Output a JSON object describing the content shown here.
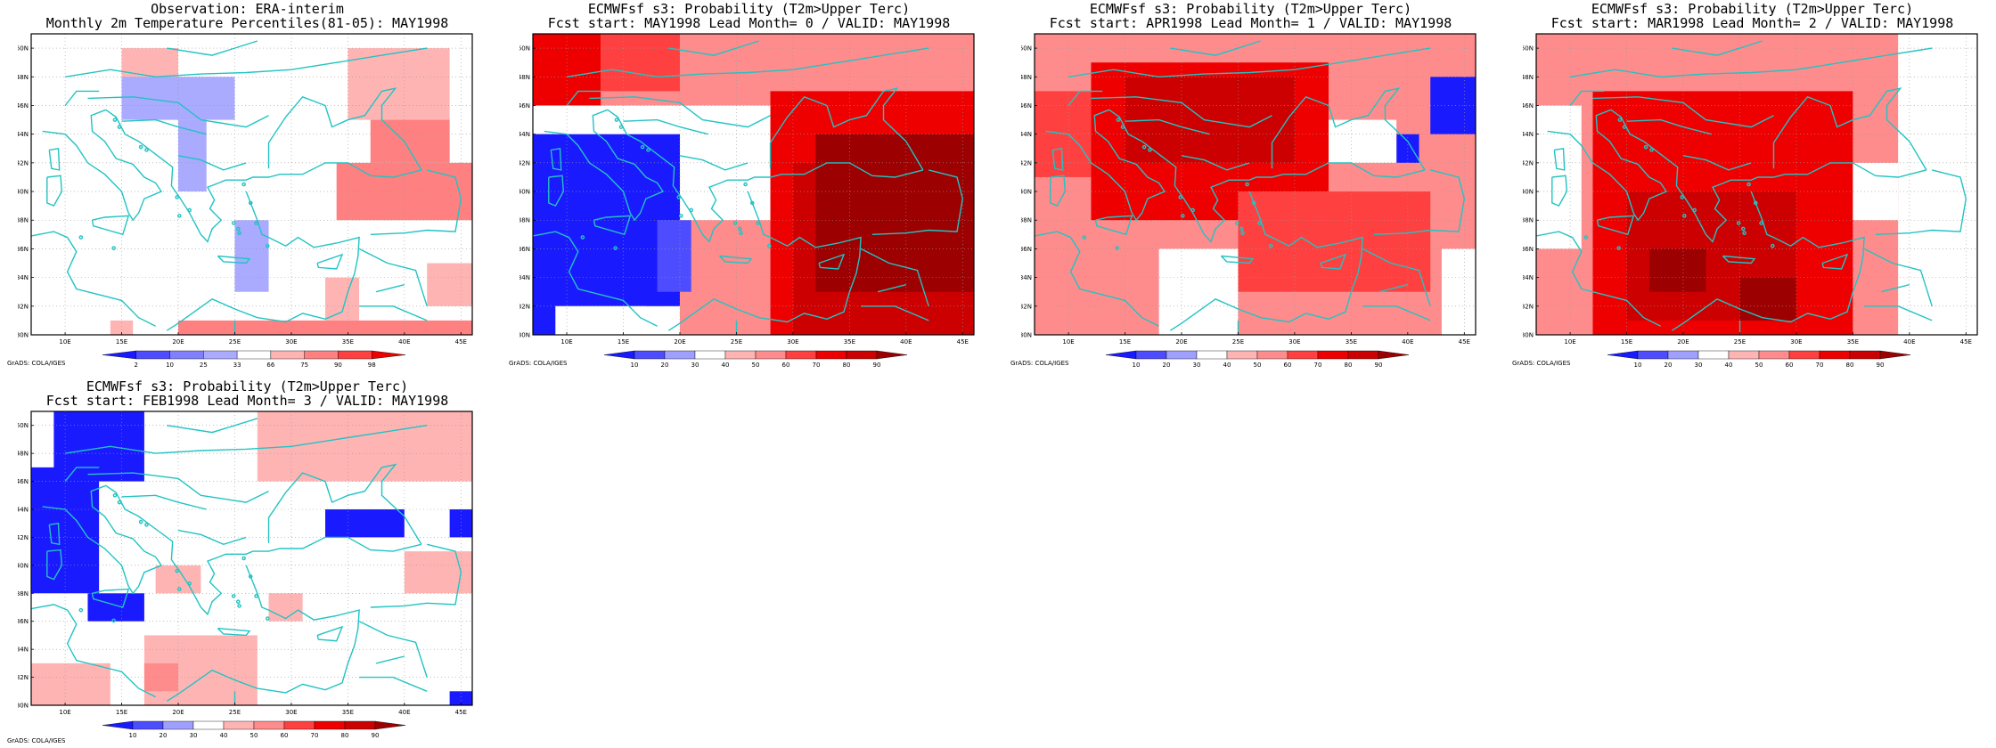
{
  "page": {
    "background": "#ffffff"
  },
  "style": {
    "coast_color": "#22c3c3",
    "frame_color": "#000000",
    "grid_color": "#9a9a9a"
  },
  "axes": {
    "lon_labels": [
      "10E",
      "15E",
      "20E",
      "25E",
      "30E",
      "35E",
      "40E",
      "45E"
    ],
    "lat_labels": [
      "30N",
      "32N",
      "34N",
      "36N",
      "38N",
      "40N",
      "42N",
      "44N",
      "46N",
      "48N",
      "50N"
    ],
    "lon_range": [
      7,
      46
    ],
    "lat_range": [
      30,
      51
    ]
  },
  "prob_colorbar": {
    "labels": [
      "10",
      "20",
      "30",
      "40",
      "50",
      "60",
      "70",
      "80",
      "90"
    ],
    "colors": [
      "#1a1aff",
      "#4d4dff",
      "#9f9fff",
      "#ffffff",
      "#ffb4b4",
      "#ff8c8c",
      "#ff4040",
      "#ee0000",
      "#cc0000",
      "#9c0000"
    ]
  },
  "obs_colorbar": {
    "labels": [
      "2",
      "10",
      "25",
      "33",
      "66",
      "75",
      "90",
      "98"
    ],
    "colors": [
      "#1a1aff",
      "#4d4dff",
      "#8080ff",
      "#aaaaff",
      "#ffffff",
      "#ffb4b4",
      "#ff8080",
      "#ff4040",
      "#ee0000"
    ]
  },
  "panels": [
    {
      "id": "obs",
      "title1": "Observation: ERA-interim",
      "title2": "Monthly 2m Temperature Percentiles(81-05): MAY1998",
      "grads": "GrADS: COLA/IGES",
      "colorbar": "obs",
      "cells": [
        {
          "lon": [
            15,
            20
          ],
          "lat": [
            48,
            50
          ],
          "c": "#ffb4b4"
        },
        {
          "lon": [
            15,
            25
          ],
          "lat": [
            45,
            48
          ],
          "c": "#aaaaff"
        },
        {
          "lon": [
            20,
            22.5
          ],
          "lat": [
            40,
            45
          ],
          "c": "#aaaaff"
        },
        {
          "lon": [
            25,
            28
          ],
          "lat": [
            33,
            38
          ],
          "c": "#aaaaff"
        },
        {
          "lon": [
            35,
            44
          ],
          "lat": [
            45,
            50
          ],
          "c": "#ffb4b4"
        },
        {
          "lon": [
            37,
            44
          ],
          "lat": [
            42,
            45
          ],
          "c": "#ff8080"
        },
        {
          "lon": [
            34,
            46
          ],
          "lat": [
            38,
            42
          ],
          "c": "#ff8080"
        },
        {
          "lon": [
            42,
            46
          ],
          "lat": [
            32,
            35
          ],
          "c": "#ffb4b4"
        },
        {
          "lon": [
            20,
            46
          ],
          "lat": [
            30,
            31
          ],
          "c": "#ff8080"
        },
        {
          "lon": [
            33,
            36
          ],
          "lat": [
            31,
            34
          ],
          "c": "#ffb4b4"
        },
        {
          "lon": [
            14,
            16
          ],
          "lat": [
            30,
            31
          ],
          "c": "#ffb4b4"
        }
      ]
    },
    {
      "id": "lead0",
      "title1": "ECMWFsf s3: Probability (T2m>Upper Terc)",
      "title2": "Fcst start: MAY1998  Lead Month= 0 / VALID: MAY1998",
      "grads": "GrADS: COLA/IGES",
      "colorbar": "prob",
      "cells": [
        {
          "lon": [
            7,
            46
          ],
          "lat": [
            46,
            51
          ],
          "c": "#ff8c8c"
        },
        {
          "lon": [
            7,
            13
          ],
          "lat": [
            46,
            51
          ],
          "c": "#ee0000"
        },
        {
          "lon": [
            13,
            20
          ],
          "lat": [
            47,
            51
          ],
          "c": "#ff4040"
        },
        {
          "lon": [
            28,
            46
          ],
          "lat": [
            30,
            47
          ],
          "c": "#ee0000"
        },
        {
          "lon": [
            30,
            46
          ],
          "lat": [
            30,
            42
          ],
          "c": "#cc0000"
        },
        {
          "lon": [
            32,
            46
          ],
          "lat": [
            33,
            44
          ],
          "c": "#9c0000"
        },
        {
          "lon": [
            20,
            28
          ],
          "lat": [
            30,
            38
          ],
          "c": "#ff8c8c"
        },
        {
          "lon": [
            7,
            20
          ],
          "lat": [
            32,
            44
          ],
          "c": "#1a1aff"
        },
        {
          "lon": [
            7,
            9
          ],
          "lat": [
            30,
            44
          ],
          "c": "#1a1aff"
        },
        {
          "lon": [
            18,
            21
          ],
          "lat": [
            33,
            38
          ],
          "c": "#4d4dff"
        },
        {
          "lon": [
            9,
            17
          ],
          "lat": [
            30,
            32
          ],
          "c": "#ffffff"
        }
      ]
    },
    {
      "id": "lead1",
      "title1": "ECMWFsf s3: Probability (T2m>Upper Terc)",
      "title2": "Fcst start: APR1998  Lead Month= 1 / VALID: MAY1998",
      "grads": "GrADS: COLA/IGES",
      "colorbar": "prob",
      "cells": [
        {
          "lon": [
            7,
            46
          ],
          "lat": [
            30,
            51
          ],
          "c": "#ff8c8c"
        },
        {
          "lon": [
            12,
            33
          ],
          "lat": [
            38,
            49
          ],
          "c": "#ee0000"
        },
        {
          "lon": [
            15,
            30
          ],
          "lat": [
            42,
            48
          ],
          "c": "#cc0000"
        },
        {
          "lon": [
            25,
            42
          ],
          "lat": [
            33,
            40
          ],
          "c": "#ff4040"
        },
        {
          "lon": [
            7,
            12
          ],
          "lat": [
            41,
            47
          ],
          "c": "#ff4040"
        },
        {
          "lon": [
            42,
            46
          ],
          "lat": [
            44,
            48
          ],
          "c": "#1a1aff"
        },
        {
          "lon": [
            39,
            41
          ],
          "lat": [
            42,
            44
          ],
          "c": "#1a1aff"
        },
        {
          "lon": [
            33,
            39
          ],
          "lat": [
            42,
            45
          ],
          "c": "#ffffff"
        },
        {
          "lon": [
            18,
            25
          ],
          "lat": [
            30,
            36
          ],
          "c": "#ffffff"
        },
        {
          "lon": [
            43,
            46
          ],
          "lat": [
            30,
            36
          ],
          "c": "#ffffff"
        }
      ]
    },
    {
      "id": "lead2",
      "title1": "ECMWFsf s3: Probability (T2m>Upper Terc)",
      "title2": "Fcst start: MAR1998  Lead Month= 2 / VALID: MAY1998",
      "grads": "GrADS: COLA/IGES",
      "colorbar": "prob",
      "cells": [
        {
          "lon": [
            7,
            46
          ],
          "lat": [
            30,
            51
          ],
          "c": "#ff8c8c"
        },
        {
          "lon": [
            12,
            35
          ],
          "lat": [
            30,
            47
          ],
          "c": "#ee0000"
        },
        {
          "lon": [
            15,
            30
          ],
          "lat": [
            31,
            40
          ],
          "c": "#cc0000"
        },
        {
          "lon": [
            17,
            22
          ],
          "lat": [
            33,
            36
          ],
          "c": "#9c0000"
        },
        {
          "lon": [
            25,
            30
          ],
          "lat": [
            31,
            34
          ],
          "c": "#9c0000"
        },
        {
          "lon": [
            39,
            46
          ],
          "lat": [
            30,
            51
          ],
          "c": "#ffffff"
        },
        {
          "lon": [
            7,
            11
          ],
          "lat": [
            36,
            46
          ],
          "c": "#ffffff"
        },
        {
          "lon": [
            35,
            39
          ],
          "lat": [
            38,
            42
          ],
          "c": "#ffffff"
        }
      ]
    },
    {
      "id": "lead3",
      "title1": "ECMWFsf s3: Probability (T2m>Upper Terc)",
      "title2": "Fcst start: FEB1998  Lead Month= 3 / VALID: MAY1998",
      "grads": "GrADS: COLA/IGES",
      "colorbar": "prob",
      "cells": [
        {
          "lon": [
            9,
            17
          ],
          "lat": [
            46,
            51
          ],
          "c": "#1a1aff"
        },
        {
          "lon": [
            7,
            13
          ],
          "lat": [
            38,
            47
          ],
          "c": "#1a1aff"
        },
        {
          "lon": [
            12,
            17
          ],
          "lat": [
            36,
            38
          ],
          "c": "#1a1aff"
        },
        {
          "lon": [
            27,
            46
          ],
          "lat": [
            46,
            51
          ],
          "c": "#ffb4b4"
        },
        {
          "lon": [
            33,
            40
          ],
          "lat": [
            42,
            44
          ],
          "c": "#1a1aff"
        },
        {
          "lon": [
            44,
            46
          ],
          "lat": [
            42,
            44
          ],
          "c": "#1a1aff"
        },
        {
          "lon": [
            44,
            46
          ],
          "lat": [
            30,
            31
          ],
          "c": "#1a1aff"
        },
        {
          "lon": [
            7,
            14
          ],
          "lat": [
            30,
            33
          ],
          "c": "#ffb4b4"
        },
        {
          "lon": [
            17,
            27
          ],
          "lat": [
            30,
            35
          ],
          "c": "#ffb4b4"
        },
        {
          "lon": [
            18,
            22
          ],
          "lat": [
            38,
            40
          ],
          "c": "#ffb4b4"
        },
        {
          "lon": [
            17,
            20
          ],
          "lat": [
            31,
            33
          ],
          "c": "#ff8c8c"
        },
        {
          "lon": [
            28,
            31
          ],
          "lat": [
            36,
            38
          ],
          "c": "#ffb4b4"
        },
        {
          "lon": [
            40,
            46
          ],
          "lat": [
            38,
            41
          ],
          "c": "#ffb4b4"
        }
      ]
    }
  ]
}
